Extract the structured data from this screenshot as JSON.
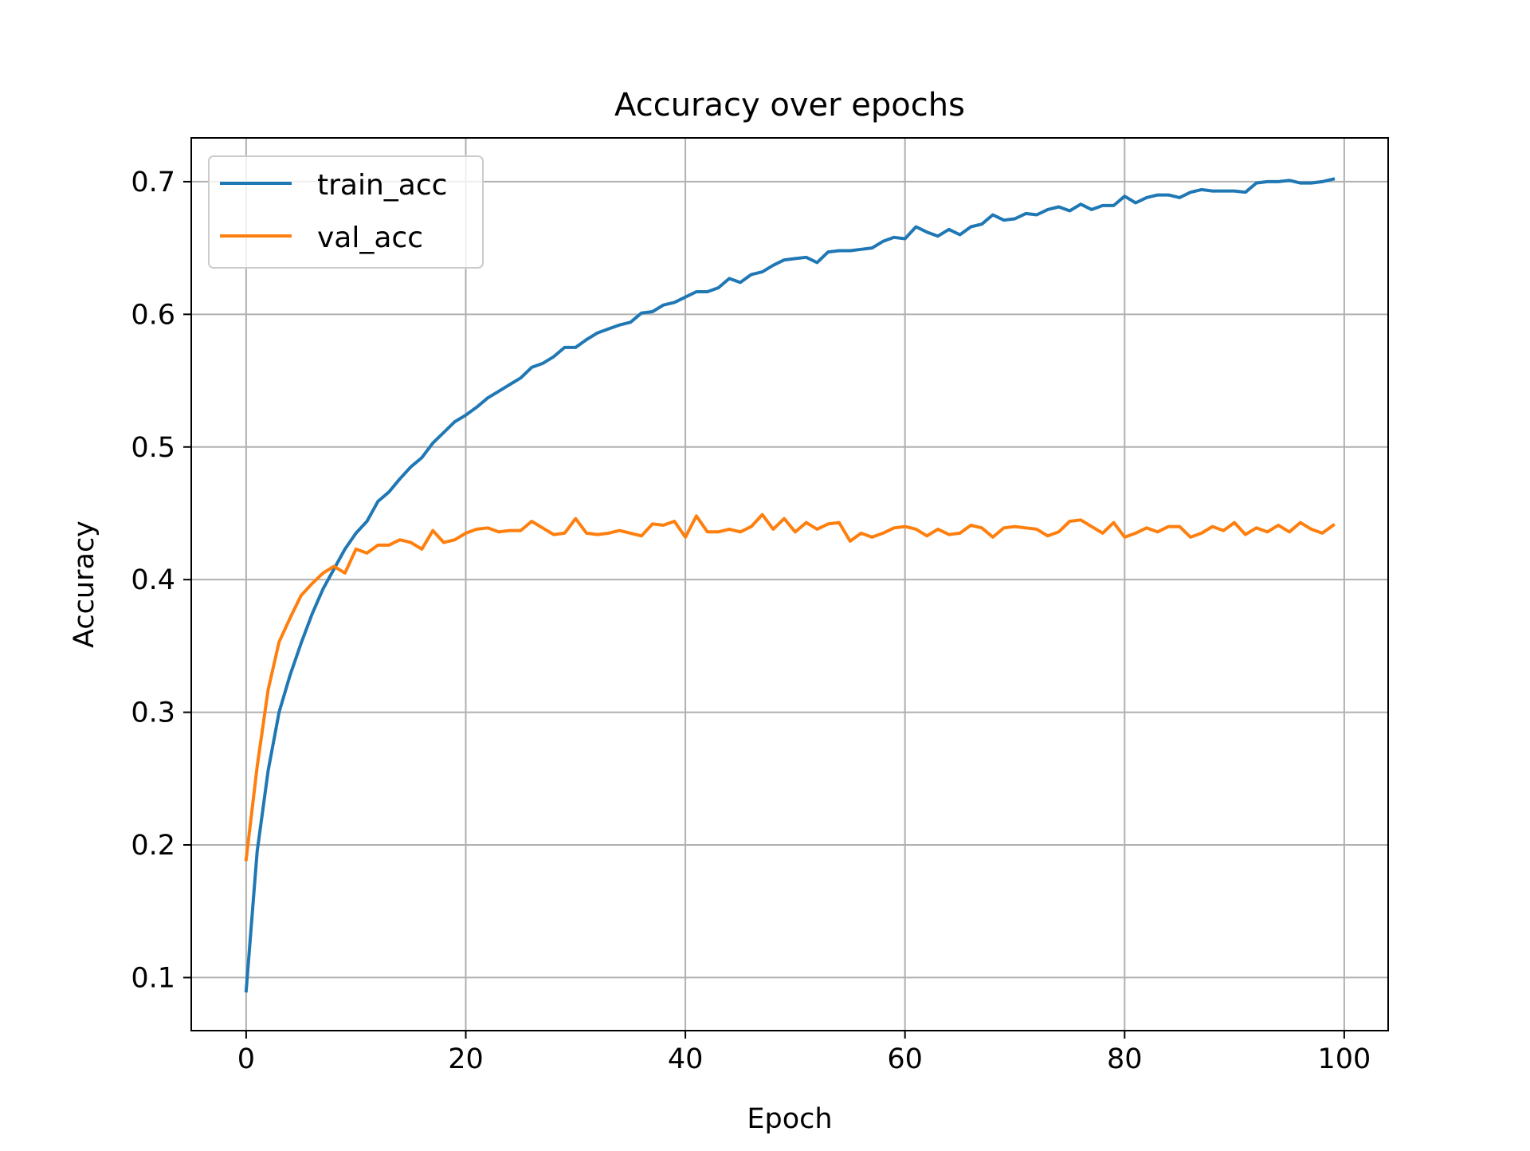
{
  "chart_data": {
    "type": "line",
    "title": "Accuracy over epochs",
    "xlabel": "Epoch",
    "ylabel": "Accuracy",
    "xlim": [
      -5,
      104
    ],
    "ylim": [
      0.06,
      0.733
    ],
    "xticks": [
      0,
      20,
      40,
      60,
      80,
      100
    ],
    "yticks": [
      0.1,
      0.2,
      0.3,
      0.4,
      0.5,
      0.6,
      0.7
    ],
    "grid": true,
    "legend_position": "top-left",
    "x": [
      0,
      1,
      2,
      3,
      4,
      5,
      6,
      7,
      8,
      9,
      10,
      11,
      12,
      13,
      14,
      15,
      16,
      17,
      18,
      19,
      20,
      21,
      22,
      23,
      24,
      25,
      26,
      27,
      28,
      29,
      30,
      31,
      32,
      33,
      34,
      35,
      36,
      37,
      38,
      39,
      40,
      41,
      42,
      43,
      44,
      45,
      46,
      47,
      48,
      49,
      50,
      51,
      52,
      53,
      54,
      55,
      56,
      57,
      58,
      59,
      60,
      61,
      62,
      63,
      64,
      65,
      66,
      67,
      68,
      69,
      70,
      71,
      72,
      73,
      74,
      75,
      76,
      77,
      78,
      79,
      80,
      81,
      82,
      83,
      84,
      85,
      86,
      87,
      88,
      89,
      90,
      91,
      92,
      93,
      94,
      95,
      96,
      97,
      98,
      99
    ],
    "series": [
      {
        "name": "train_acc",
        "color": "#1f77b4",
        "values": [
          0.09,
          0.195,
          0.256,
          0.3,
          0.328,
          0.352,
          0.374,
          0.393,
          0.408,
          0.423,
          0.435,
          0.444,
          0.459,
          0.466,
          0.476,
          0.485,
          0.492,
          0.503,
          0.511,
          0.519,
          0.524,
          0.53,
          0.537,
          0.542,
          0.547,
          0.552,
          0.56,
          0.563,
          0.568,
          0.575,
          0.575,
          0.581,
          0.586,
          0.589,
          0.592,
          0.594,
          0.601,
          0.602,
          0.607,
          0.609,
          0.613,
          0.617,
          0.617,
          0.62,
          0.627,
          0.624,
          0.63,
          0.632,
          0.637,
          0.641,
          0.642,
          0.643,
          0.639,
          0.647,
          0.648,
          0.648,
          0.649,
          0.65,
          0.655,
          0.658,
          0.657,
          0.666,
          0.662,
          0.659,
          0.664,
          0.66,
          0.666,
          0.668,
          0.675,
          0.671,
          0.672,
          0.676,
          0.675,
          0.679,
          0.681,
          0.678,
          0.683,
          0.679,
          0.682,
          0.682,
          0.689,
          0.684,
          0.688,
          0.69,
          0.69,
          0.688,
          0.692,
          0.694,
          0.693,
          0.693,
          0.693,
          0.692,
          0.699,
          0.7,
          0.7,
          0.701,
          0.699,
          0.699,
          0.7,
          0.702
        ]
      },
      {
        "name": "val_acc",
        "color": "#ff7f0e",
        "values": [
          0.189,
          0.259,
          0.317,
          0.353,
          0.371,
          0.388,
          0.397,
          0.405,
          0.41,
          0.405,
          0.423,
          0.42,
          0.426,
          0.426,
          0.43,
          0.428,
          0.423,
          0.437,
          0.428,
          0.43,
          0.435,
          0.438,
          0.439,
          0.436,
          0.437,
          0.437,
          0.444,
          0.439,
          0.434,
          0.435,
          0.446,
          0.435,
          0.434,
          0.435,
          0.437,
          0.435,
          0.433,
          0.442,
          0.441,
          0.444,
          0.432,
          0.448,
          0.436,
          0.436,
          0.438,
          0.436,
          0.44,
          0.449,
          0.438,
          0.446,
          0.436,
          0.443,
          0.438,
          0.442,
          0.443,
          0.429,
          0.435,
          0.432,
          0.435,
          0.439,
          0.44,
          0.438,
          0.433,
          0.438,
          0.434,
          0.435,
          0.441,
          0.439,
          0.432,
          0.439,
          0.44,
          0.439,
          0.438,
          0.433,
          0.436,
          0.444,
          0.445,
          0.44,
          0.435,
          0.443,
          0.432,
          0.435,
          0.439,
          0.436,
          0.44,
          0.44,
          0.432,
          0.435,
          0.44,
          0.437,
          0.443,
          0.434,
          0.439,
          0.436,
          0.441,
          0.436,
          0.443,
          0.438,
          0.435,
          0.441
        ]
      }
    ]
  }
}
